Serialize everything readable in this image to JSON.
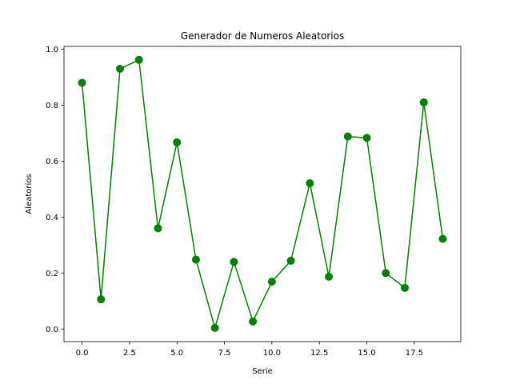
{
  "chart_data": {
    "type": "line",
    "title": "Generador de Numeros Aleatorios",
    "xlabel": "Serie",
    "ylabel": "Aleatorios",
    "xlim": [
      -0.95,
      19.95
    ],
    "ylim": [
      -0.045,
      1.01
    ],
    "x_ticks": [
      0.0,
      2.5,
      5.0,
      7.5,
      10.0,
      12.5,
      15.0,
      17.5
    ],
    "x_tick_labels": [
      "0.0",
      "2.5",
      "5.0",
      "7.5",
      "10.0",
      "12.5",
      "15.0",
      "17.5"
    ],
    "y_ticks": [
      0.0,
      0.2,
      0.4,
      0.6,
      0.8,
      1.0
    ],
    "y_tick_labels": [
      "0.0",
      "0.2",
      "0.4",
      "0.6",
      "0.8",
      "1.0"
    ],
    "grid": false,
    "series": [
      {
        "color": "#008000",
        "marker": "circle",
        "x": [
          0,
          1,
          2,
          3,
          4,
          5,
          6,
          7,
          8,
          9,
          10,
          11,
          12,
          13,
          14,
          15,
          16,
          17,
          18,
          19
        ],
        "y": [
          0.88,
          0.106,
          0.93,
          0.962,
          0.36,
          0.667,
          0.248,
          0.004,
          0.24,
          0.027,
          0.169,
          0.244,
          0.521,
          0.187,
          0.688,
          0.683,
          0.2,
          0.147,
          0.81,
          0.322
        ]
      }
    ]
  }
}
